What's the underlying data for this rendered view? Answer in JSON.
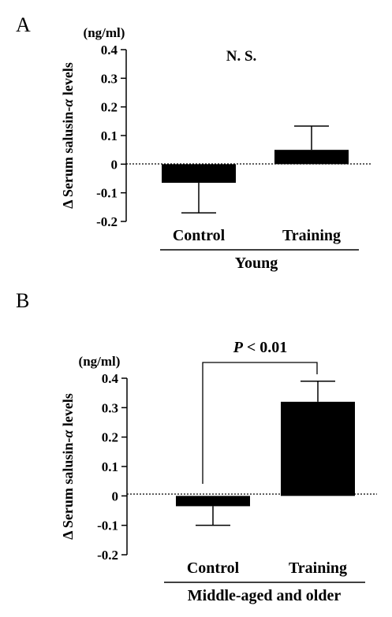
{
  "chart_data": [
    {
      "type": "bar",
      "panel_label": "A",
      "unit": "(ng/ml)",
      "ylabel": "Δ Serum salusin-α levels",
      "ylabel_prefix": "Δ Serum salusin-",
      "ylabel_alpha": "α",
      "ylabel_suffix": " levels",
      "ylim": [
        -0.2,
        0.4
      ],
      "yticks": [
        -0.2,
        -0.1,
        0,
        0.1,
        0.2,
        0.3,
        0.4
      ],
      "ytick_labels": [
        "-0.2",
        "-0.1",
        "0",
        "0.1",
        "0.2",
        "0.3",
        "0.4"
      ],
      "categories": [
        "Control",
        "Training"
      ],
      "values": [
        -0.065,
        0.05
      ],
      "error_bars": [
        0.105,
        0.083
      ],
      "group_label": "Young",
      "annotation": "N. S.",
      "bar_color": "#000000"
    },
    {
      "type": "bar",
      "panel_label": "B",
      "unit": "(ng/ml)",
      "ylabel": "Δ Serum salusin-α levels",
      "ylabel_prefix": "Δ Serum salusin-",
      "ylabel_alpha": "α",
      "ylabel_suffix": " levels",
      "ylim": [
        -0.2,
        0.4
      ],
      "yticks": [
        -0.2,
        -0.1,
        0,
        0.1,
        0.2,
        0.3,
        0.4
      ],
      "ytick_labels": [
        "-0.2",
        "-0.1",
        "0",
        "0.1",
        "0.2",
        "0.3",
        "0.4"
      ],
      "categories": [
        "Control",
        "Training"
      ],
      "values": [
        -0.035,
        0.32
      ],
      "error_bars": [
        0.065,
        0.07
      ],
      "group_label": "Middle-aged and older",
      "annotation_p": "P",
      "annotation_rest": " < 0.01",
      "bar_color": "#000000"
    }
  ]
}
